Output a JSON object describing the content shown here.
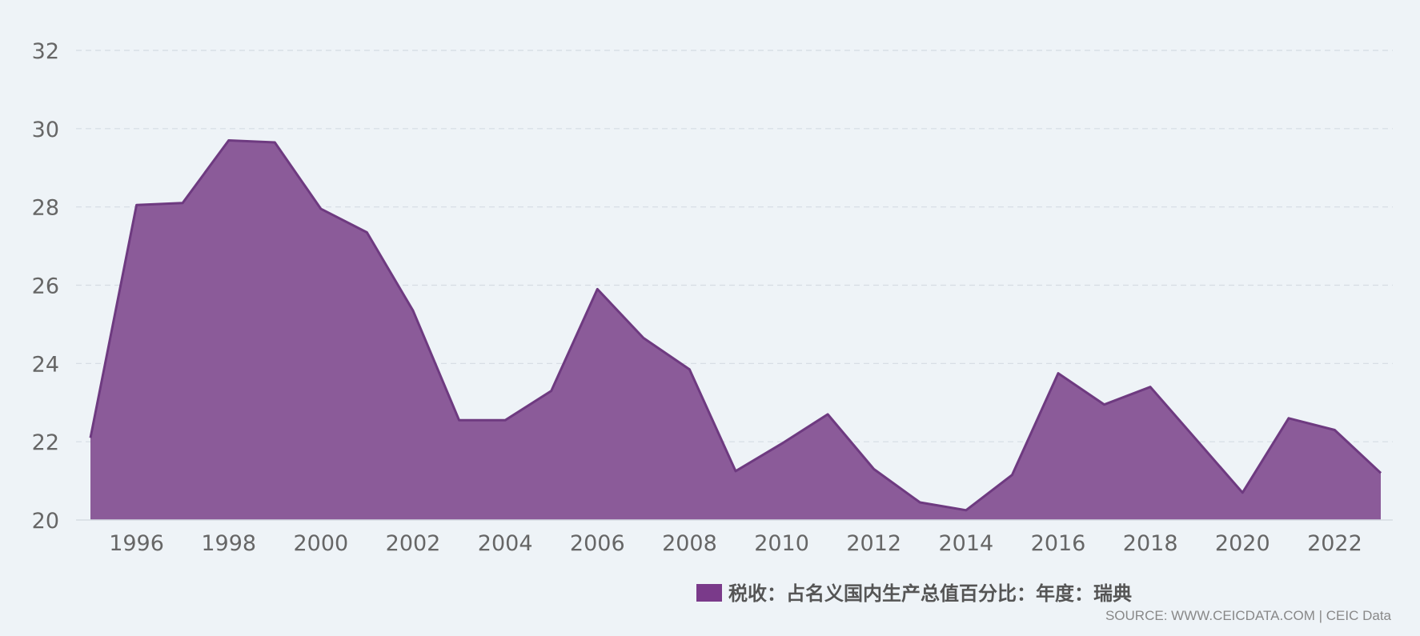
{
  "chart_data": {
    "type": "area",
    "x": [
      1995,
      1996,
      1997,
      1998,
      1999,
      2000,
      2001,
      2002,
      2003,
      2004,
      2005,
      2006,
      2007,
      2008,
      2009,
      2010,
      2011,
      2012,
      2013,
      2014,
      2015,
      2016,
      2017,
      2018,
      2019,
      2020,
      2021,
      2022,
      2023
    ],
    "series": [
      {
        "name": "税收：占名义国内生产总值百分比：年度：瑞典",
        "values": [
          22.1,
          28.05,
          28.1,
          29.7,
          29.65,
          27.95,
          27.35,
          25.35,
          22.55,
          22.55,
          23.3,
          25.9,
          24.65,
          23.85,
          21.25,
          21.95,
          22.7,
          21.3,
          20.45,
          20.25,
          21.15,
          23.75,
          22.95,
          23.4,
          22.05,
          20.7,
          22.6,
          22.3,
          21.2
        ]
      }
    ],
    "x_ticks": [
      "1996",
      "1998",
      "2000",
      "2002",
      "2004",
      "2006",
      "2008",
      "2010",
      "2012",
      "2014",
      "2016",
      "2018",
      "2020",
      "2022"
    ],
    "y_ticks": [
      "20",
      "22",
      "24",
      "26",
      "28",
      "30",
      "32"
    ],
    "ylim": [
      20,
      32
    ],
    "xlim": [
      1995,
      2023
    ],
    "grid": "horizontal-dashed",
    "legend_position": "bottom-center",
    "colors": {
      "fill": "#8b5b99",
      "line": "#6e3a80",
      "legend": "#7a3a8a",
      "grid": "#d5dce3",
      "background": "#eef3f7"
    },
    "source": "SOURCE: WWW.CEICDATA.COM | CEIC Data"
  }
}
